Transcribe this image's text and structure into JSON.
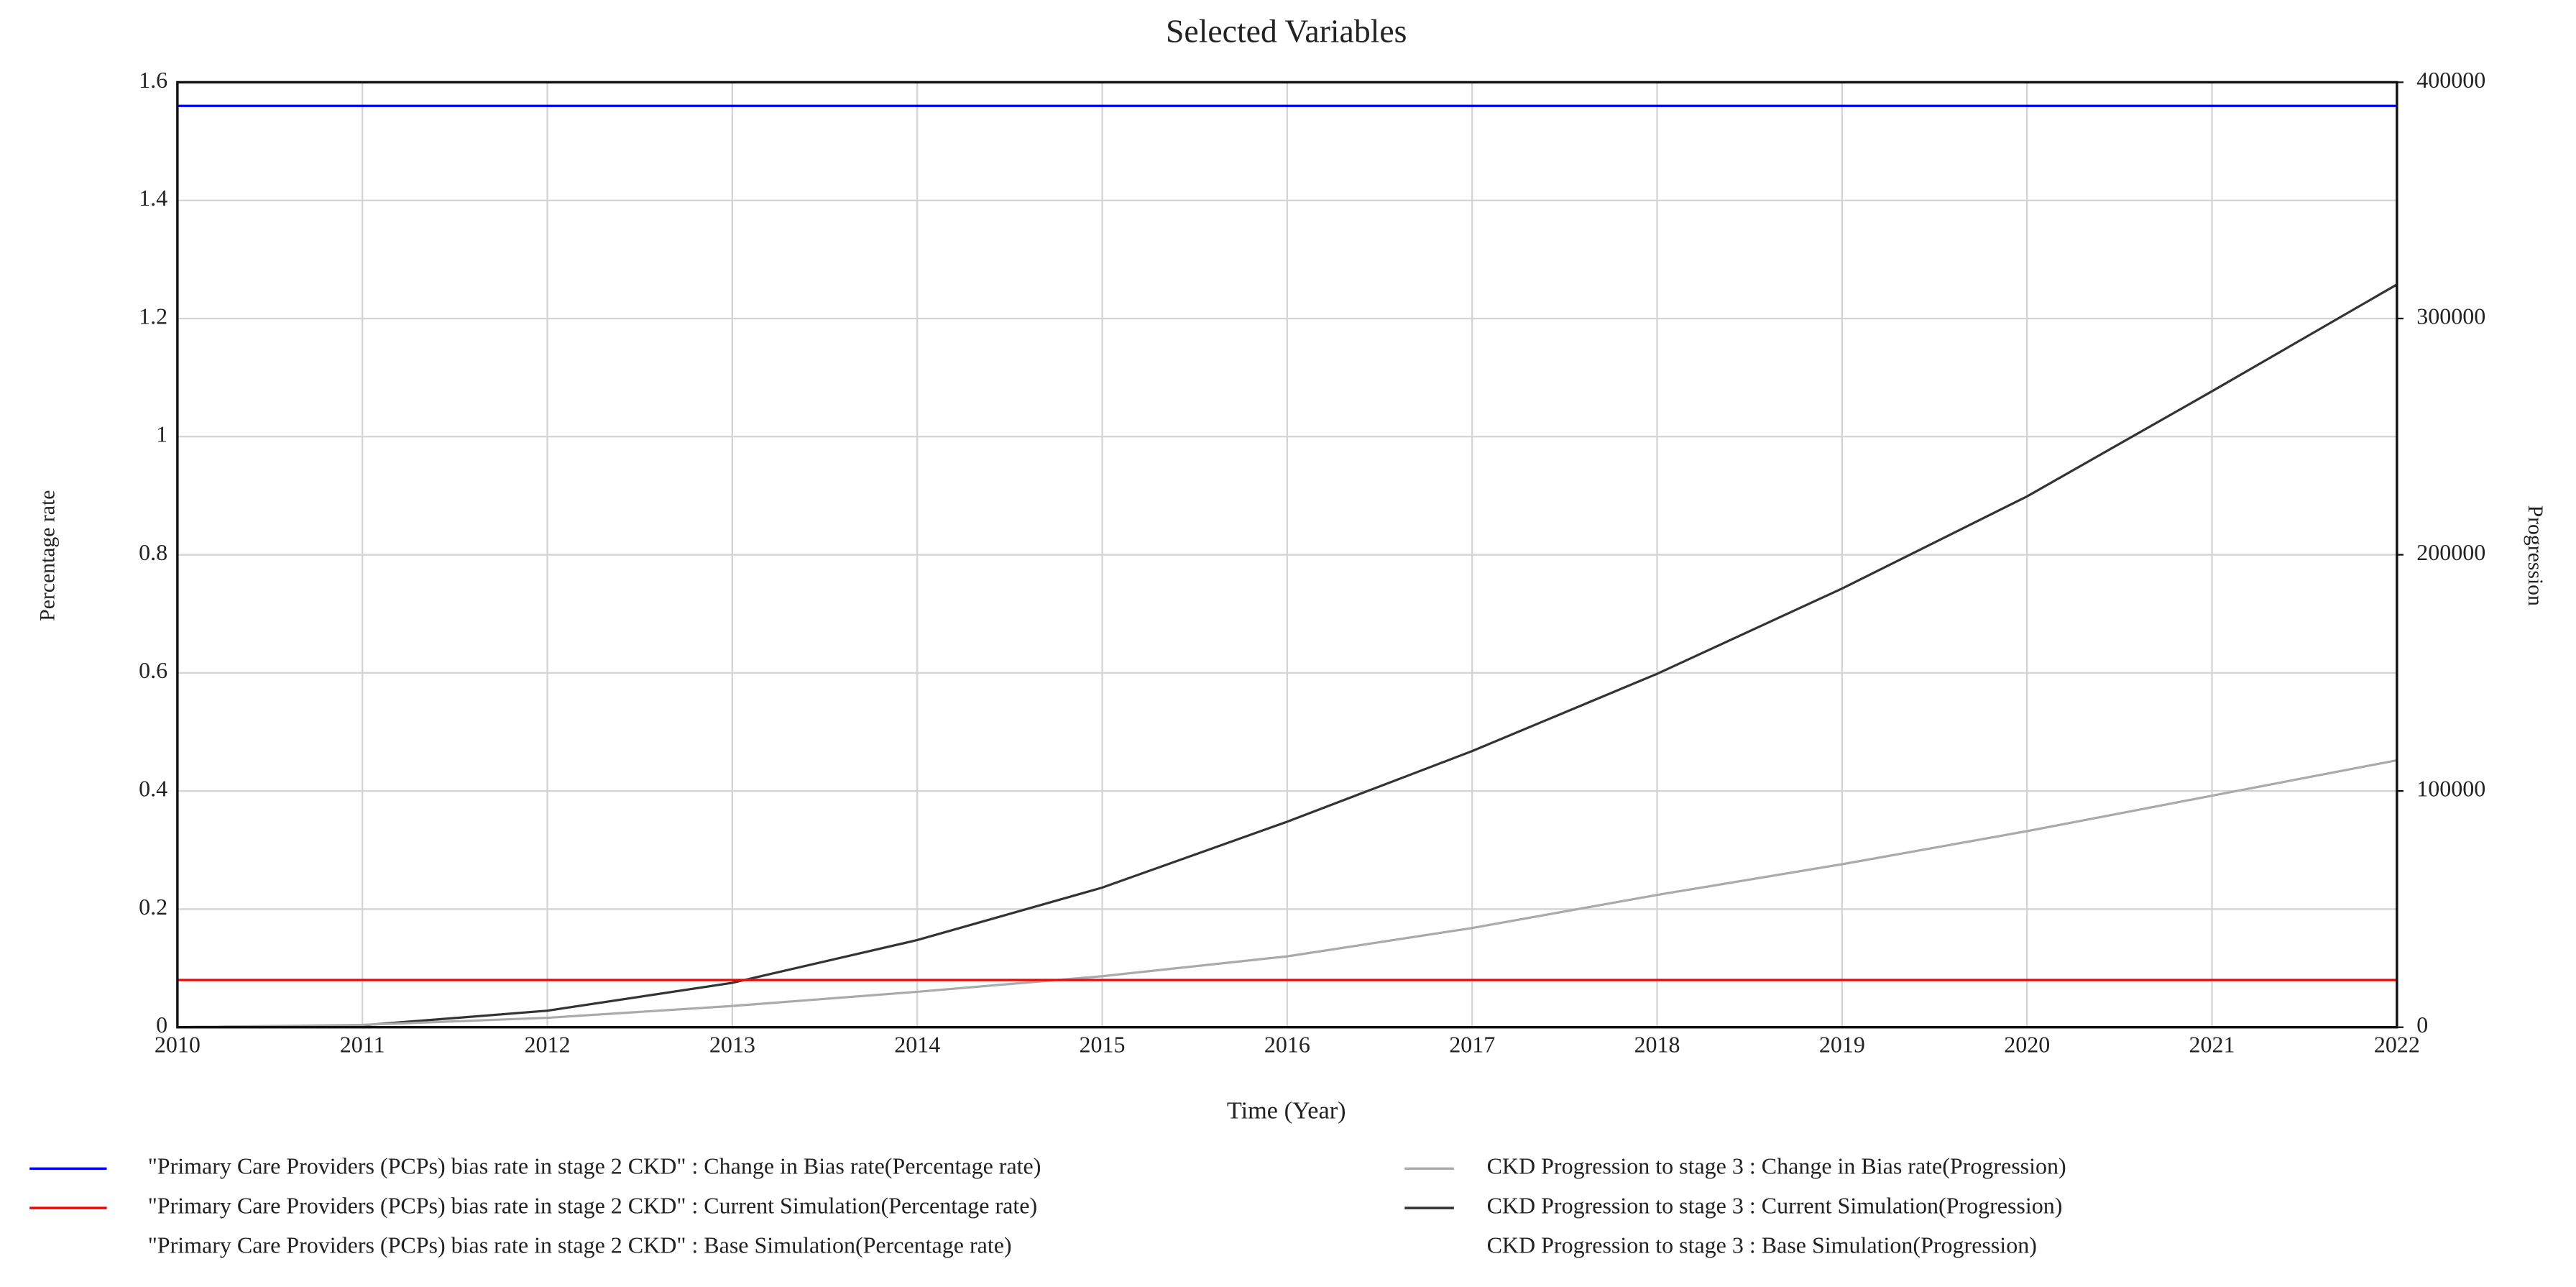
{
  "chart_data": {
    "type": "line",
    "title": "Selected Variables",
    "x_label": "Time (Year)",
    "y_label": "Percentage rate",
    "y2_label": "Progression",
    "x": [
      2010,
      2011,
      2012,
      2013,
      2014,
      2015,
      2016,
      2017,
      2018,
      2019,
      2020,
      2021,
      2022
    ],
    "xlim": [
      2010,
      2022
    ],
    "xticks": [
      2010,
      2011,
      2012,
      2013,
      2014,
      2015,
      2016,
      2017,
      2018,
      2019,
      2020,
      2021,
      2022
    ],
    "ylim": [
      0,
      1.6
    ],
    "yticks": [
      0,
      0.2,
      0.4,
      0.6,
      0.8,
      1,
      1.2,
      1.4,
      1.6
    ],
    "y2lim": [
      0,
      400000
    ],
    "y2ticks": [
      0,
      100000,
      200000,
      300000,
      400000
    ],
    "grid": true,
    "series": [
      {
        "name": "\"Primary Care Providers (PCPs) bias rate in stage 2 CKD\" : Change in Bias rate(Percentage rate)",
        "color": "#0000ff",
        "axis": "y",
        "values": [
          1.56,
          1.56,
          1.56,
          1.56,
          1.56,
          1.56,
          1.56,
          1.56,
          1.56,
          1.56,
          1.56,
          1.56,
          1.56
        ]
      },
      {
        "name": "\"Primary Care Providers (PCPs) bias rate in stage 2 CKD\" : Current Simulation(Percentage rate)",
        "color": "#ff0000",
        "axis": "y",
        "values": [
          0.08,
          0.08,
          0.08,
          0.08,
          0.08,
          0.08,
          0.08,
          0.08,
          0.08,
          0.08,
          0.08,
          0.08,
          0.08
        ]
      },
      {
        "name": "\"Primary Care Providers (PCPs) bias rate in stage 2 CKD\" : Base Simulation(Percentage rate)",
        "color": "#ffffff",
        "axis": "y",
        "values": [
          0.08,
          0.08,
          0.08,
          0.08,
          0.08,
          0.08,
          0.08,
          0.08,
          0.08,
          0.08,
          0.08,
          0.08,
          0.08
        ]
      },
      {
        "name": "CKD Progression to stage 3 : Change in Bias rate(Progression)",
        "color": "#aaaaaa",
        "axis": "y2",
        "values": [
          0,
          1000,
          4000,
          9000,
          15000,
          21600,
          30000,
          42000,
          56000,
          69000,
          83000,
          98000,
          113000
        ]
      },
      {
        "name": "CKD Progression to stage 3 : Current Simulation(Progression)",
        "color": "#333333",
        "axis": "y2",
        "values": [
          0,
          800,
          7000,
          18800,
          36900,
          59100,
          87000,
          116900,
          149600,
          185700,
          224700,
          269200,
          314400
        ]
      },
      {
        "name": "CKD Progression to stage 3 : Base Simulation(Progression)",
        "color": "#ffffff",
        "axis": "y2",
        "values": [
          0,
          800,
          7000,
          18800,
          36900,
          59100,
          87000,
          116900,
          149600,
          185700,
          224700,
          269200,
          314400
        ]
      }
    ]
  }
}
